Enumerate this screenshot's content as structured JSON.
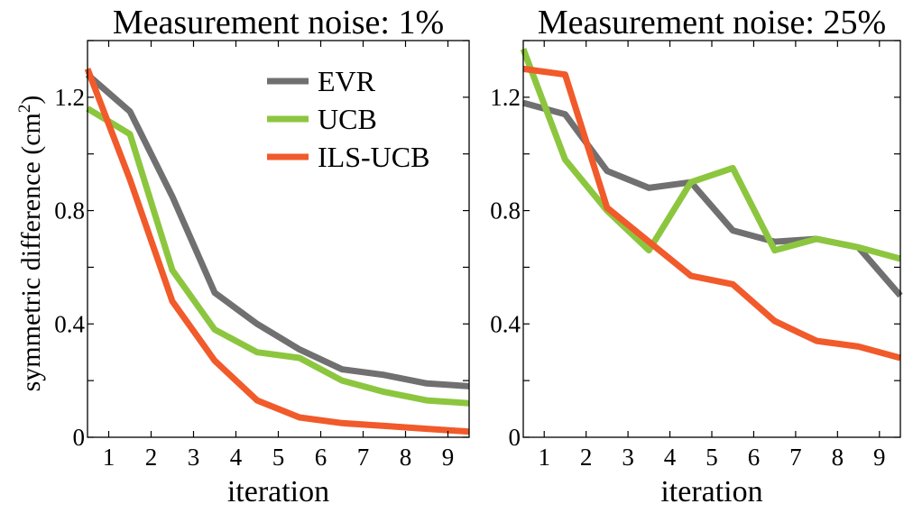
{
  "colors": {
    "EVR": "#707070",
    "UCB": "#8cc63f",
    "ILS-UCB": "#f15a2b"
  },
  "ylabel_text": "symmetric difference (cm",
  "ylabel_sup": "2",
  "ylabel_close": ")",
  "chart_data": [
    {
      "type": "line",
      "title": "Measurement noise: 1%",
      "xlabel": "iteration",
      "ylabel": "symmetric difference (cm²)",
      "xlim": [
        0.5,
        9.5
      ],
      "ylim": [
        0,
        1.4
      ],
      "xticks": [
        1,
        2,
        3,
        4,
        5,
        6,
        7,
        8,
        9
      ],
      "yticks": [
        0,
        0.4,
        0.8,
        1.2
      ],
      "ytick_labels": [
        "0",
        "0.4",
        "0.8",
        "1.2"
      ],
      "grid": false,
      "legend": "top-center",
      "x": [
        0.5,
        1.5,
        2.5,
        3.5,
        4.5,
        5.5,
        6.5,
        7.5,
        8.5,
        9.5
      ],
      "series": [
        {
          "name": "EVR",
          "values": [
            1.28,
            1.15,
            0.85,
            0.51,
            0.4,
            0.31,
            0.24,
            0.22,
            0.19,
            0.18
          ]
        },
        {
          "name": "UCB",
          "values": [
            1.16,
            1.07,
            0.59,
            0.38,
            0.3,
            0.28,
            0.2,
            0.16,
            0.13,
            0.12
          ]
        },
        {
          "name": "ILS-UCB",
          "values": [
            1.3,
            0.91,
            0.48,
            0.27,
            0.13,
            0.07,
            0.05,
            0.04,
            0.03,
            0.02
          ]
        }
      ]
    },
    {
      "type": "line",
      "title": "Measurement noise: 25%",
      "xlabel": "iteration",
      "xlim": [
        0.5,
        9.5
      ],
      "ylim": [
        0,
        1.4
      ],
      "xticks": [
        1,
        2,
        3,
        4,
        5,
        6,
        7,
        8,
        9
      ],
      "yticks": [
        0,
        0.4,
        0.8,
        1.2
      ],
      "ytick_labels": [
        "0",
        "0.4",
        "0.8",
        "1.2"
      ],
      "grid": false,
      "x": [
        0.5,
        1.5,
        2.5,
        3.5,
        4.5,
        5.5,
        6.5,
        7.5,
        8.5,
        9.5
      ],
      "series": [
        {
          "name": "EVR",
          "values": [
            1.18,
            1.14,
            0.94,
            0.88,
            0.9,
            0.73,
            0.69,
            0.7,
            0.67,
            0.5
          ]
        },
        {
          "name": "UCB",
          "values": [
            1.37,
            0.98,
            0.8,
            0.66,
            0.9,
            0.95,
            0.66,
            0.7,
            0.67,
            0.63
          ]
        },
        {
          "name": "ILS-UCB",
          "values": [
            1.3,
            1.28,
            0.81,
            0.69,
            0.57,
            0.54,
            0.41,
            0.34,
            0.32,
            0.28
          ]
        }
      ]
    }
  ]
}
